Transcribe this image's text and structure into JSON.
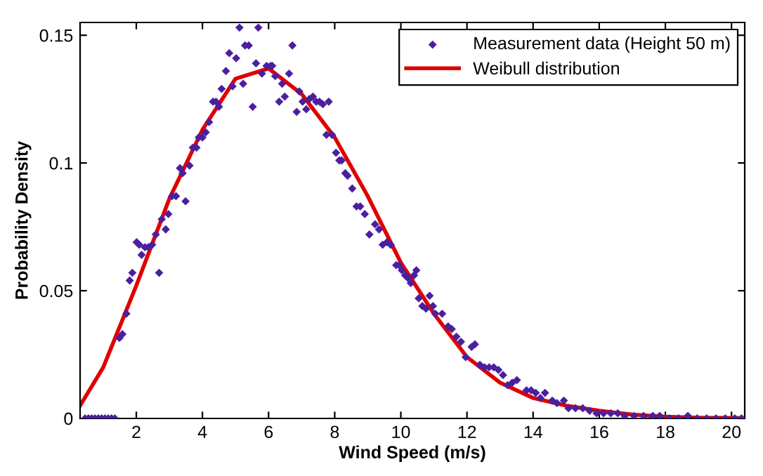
{
  "chart_data": {
    "type": "scatter",
    "xlabel": "Wind Speed (m/s)",
    "ylabel": "Probability Density",
    "xlim": [
      0.3,
      20.4
    ],
    "ylim": [
      0,
      0.155
    ],
    "xticks": [
      2,
      4,
      6,
      8,
      10,
      12,
      14,
      16,
      18,
      20
    ],
    "yticks": [
      0,
      0.05,
      0.1,
      0.15
    ],
    "grid": false,
    "legend": "top right",
    "series": [
      {
        "name": "Measurement data (Height 50 m)",
        "marker": "diamond",
        "color": "#4b1fa0",
        "x": [
          0.45,
          0.55,
          0.65,
          0.75,
          0.85,
          0.95,
          1.05,
          1.15,
          1.25,
          1.35,
          1.49,
          1.58,
          1.7,
          1.8,
          1.88,
          2.01,
          2.09,
          2.16,
          2.26,
          2.36,
          2.48,
          2.59,
          2.69,
          2.77,
          2.89,
          2.97,
          3.08,
          3.2,
          3.32,
          3.4,
          3.49,
          3.61,
          3.71,
          3.82,
          3.89,
          4.0,
          4.1,
          4.2,
          4.32,
          4.41,
          4.5,
          4.58,
          4.71,
          4.81,
          4.91,
          5.02,
          5.12,
          5.23,
          5.29,
          5.4,
          5.52,
          5.62,
          5.69,
          5.8,
          5.94,
          6.06,
          6.11,
          6.2,
          6.32,
          6.41,
          6.49,
          6.62,
          6.72,
          6.85,
          6.93,
          7.03,
          7.14,
          7.23,
          7.34,
          7.44,
          7.54,
          7.64,
          7.75,
          7.82,
          7.92,
          8.04,
          8.14,
          8.21,
          8.32,
          8.39,
          8.53,
          8.66,
          8.77,
          8.91,
          9.05,
          9.22,
          9.34,
          9.45,
          9.58,
          9.69,
          9.86,
          9.95,
          10.03,
          10.13,
          10.21,
          10.3,
          10.4,
          10.47,
          10.54,
          10.65,
          10.76,
          10.87,
          10.97,
          11.04,
          11.25,
          11.43,
          11.54,
          11.68,
          11.82,
          11.96,
          12.14,
          12.24,
          12.39,
          12.53,
          12.67,
          12.81,
          12.95,
          13.09,
          13.23,
          13.37,
          13.51,
          13.8,
          13.94,
          14.08,
          14.22,
          14.36,
          14.58,
          14.72,
          14.93,
          15.07,
          15.28,
          15.5,
          15.71,
          15.92,
          16.13,
          16.35,
          16.56,
          16.77,
          17.05,
          17.34,
          17.62,
          17.83,
          18.11,
          18.4,
          18.68,
          18.96,
          19.25,
          19.53,
          19.81,
          20.1,
          20.3
        ],
        "values": [
          0,
          0,
          0,
          0,
          0,
          0,
          0,
          0,
          0,
          0,
          0.0315,
          0.033,
          0.041,
          0.054,
          0.057,
          0.069,
          0.068,
          0.064,
          0.067,
          0.067,
          0.068,
          0.072,
          0.057,
          0.078,
          0.074,
          0.08,
          0.087,
          0.087,
          0.098,
          0.096,
          0.085,
          0.099,
          0.106,
          0.106,
          0.11,
          0.11,
          0.112,
          0.116,
          0.124,
          0.124,
          0.122,
          0.129,
          0.136,
          0.143,
          0.13,
          0.141,
          0.153,
          0.131,
          0.146,
          0.146,
          0.122,
          0.139,
          0.153,
          0.135,
          0.138,
          0.138,
          0.138,
          0.134,
          0.124,
          0.131,
          0.126,
          0.135,
          0.146,
          0.12,
          0.128,
          0.124,
          0.121,
          0.125,
          0.126,
          0.124,
          0.124,
          0.123,
          0.111,
          0.124,
          0.111,
          0.104,
          0.101,
          0.101,
          0.096,
          0.095,
          0.09,
          0.083,
          0.083,
          0.08,
          0.072,
          0.076,
          0.074,
          0.068,
          0.069,
          0.068,
          0.06,
          0.06,
          0.058,
          0.056,
          0.055,
          0.053,
          0.056,
          0.058,
          0.047,
          0.044,
          0.043,
          0.048,
          0.044,
          0.041,
          0.041,
          0.036,
          0.035,
          0.032,
          0.03,
          0.024,
          0.028,
          0.029,
          0.021,
          0.02,
          0.02,
          0.02,
          0.019,
          0.017,
          0.013,
          0.014,
          0.015,
          0.011,
          0.011,
          0.01,
          0.008,
          0.01,
          0.007,
          0.006,
          0.007,
          0.004,
          0.004,
          0.004,
          0.003,
          0.002,
          0.002,
          0.002,
          0.002,
          0.001,
          0.001,
          0.001,
          0.001,
          0.001,
          0,
          0,
          0.001,
          0,
          0,
          0,
          0,
          0,
          0
        ]
      },
      {
        "name": "Weibull distribution",
        "type": "line",
        "marker": "none",
        "line_style": "solid",
        "color": "#e00000",
        "x": [
          0.3,
          1,
          2,
          3,
          4,
          5,
          6,
          7,
          8,
          9,
          10,
          11,
          12,
          13,
          14,
          15,
          16,
          17,
          18,
          19,
          20.4
        ],
        "values": [
          0.005,
          0.02,
          0.052,
          0.086,
          0.113,
          0.133,
          0.137,
          0.127,
          0.11,
          0.087,
          0.061,
          0.041,
          0.024,
          0.014,
          0.008,
          0.005,
          0.003,
          0.0015,
          0.0007,
          0.0003,
          0.0001
        ]
      }
    ]
  }
}
